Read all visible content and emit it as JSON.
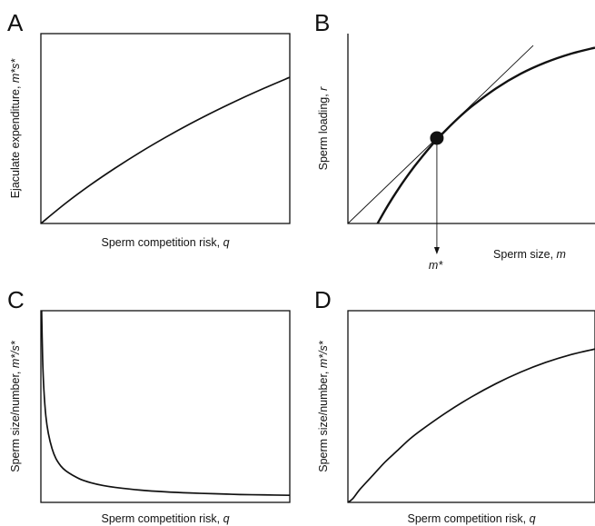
{
  "chart_data": [
    {
      "panel": "A",
      "type": "line",
      "xlabel": "Sperm competition risk,",
      "xvar": "q",
      "ylabel": "Ejaculate expenditure,",
      "yvar": "m*s*",
      "xlim": [
        0,
        1
      ],
      "ylim": [
        0,
        1
      ],
      "grid": false,
      "series": [
        {
          "x": [
            0,
            0.1,
            0.2,
            0.3,
            0.4,
            0.5,
            0.6,
            0.7,
            0.8,
            0.9,
            1.0
          ],
          "y": [
            0,
            0.107,
            0.204,
            0.293,
            0.376,
            0.453,
            0.525,
            0.592,
            0.655,
            0.714,
            0.77
          ]
        }
      ]
    },
    {
      "panel": "B",
      "type": "line",
      "xlabel": "Sperm size,",
      "xvar": "m",
      "ylabel": "Sperm loading,",
      "yvar": "r",
      "marker_label": "m*",
      "xlim": [
        0,
        1
      ],
      "ylim": [
        0,
        1
      ],
      "grid": false,
      "optimum": {
        "x": 0.36,
        "y": 0.45
      },
      "tangent": {
        "x": [
          0,
          0.75
        ],
        "y": [
          0,
          0.9375
        ]
      },
      "series": [
        {
          "x": [
            0.12,
            0.15,
            0.18,
            0.21,
            0.24,
            0.27,
            0.3,
            0.33,
            0.36,
            0.4,
            0.45,
            0.5,
            0.6,
            0.7,
            0.8,
            0.9,
            1.0
          ],
          "y": [
            0,
            0.069,
            0.133,
            0.193,
            0.249,
            0.302,
            0.351,
            0.398,
            0.442,
            0.496,
            0.559,
            0.616,
            0.712,
            0.789,
            0.848,
            0.893,
            0.926
          ]
        }
      ]
    },
    {
      "panel": "C",
      "type": "line",
      "xlabel": "Sperm competition risk,",
      "xvar": "q",
      "ylabel": "Sperm size/number,",
      "yvar": "m*/s*",
      "xlim": [
        0,
        1
      ],
      "ylim": [
        0,
        1
      ],
      "grid": false,
      "series": [
        {
          "x": [
            0.003,
            0.007,
            0.012,
            0.02,
            0.03,
            0.045,
            0.06,
            0.08,
            0.1,
            0.13,
            0.16,
            0.2,
            0.25,
            0.3,
            0.4,
            0.5,
            0.6,
            0.7,
            0.8,
            0.9,
            1.0
          ],
          "y": [
            1.0,
            0.75,
            0.59,
            0.45,
            0.36,
            0.28,
            0.23,
            0.19,
            0.165,
            0.14,
            0.12,
            0.103,
            0.088,
            0.078,
            0.064,
            0.055,
            0.049,
            0.045,
            0.041,
            0.039,
            0.037
          ]
        }
      ]
    },
    {
      "panel": "D",
      "type": "line",
      "xlabel": "Sperm competition risk,",
      "xvar": "q",
      "ylabel": "Sperm size/number,",
      "yvar": "m*/s*",
      "xlim": [
        0,
        1
      ],
      "ylim": [
        0,
        1
      ],
      "grid": false,
      "series": [
        {
          "x": [
            0,
            0.02,
            0.05,
            0.1,
            0.15,
            0.2,
            0.25,
            0.3,
            0.4,
            0.5,
            0.6,
            0.7,
            0.8,
            0.9,
            1.0
          ],
          "y": [
            0,
            0.02,
            0.07,
            0.14,
            0.21,
            0.27,
            0.33,
            0.38,
            0.47,
            0.55,
            0.62,
            0.68,
            0.73,
            0.77,
            0.8
          ]
        }
      ]
    }
  ]
}
